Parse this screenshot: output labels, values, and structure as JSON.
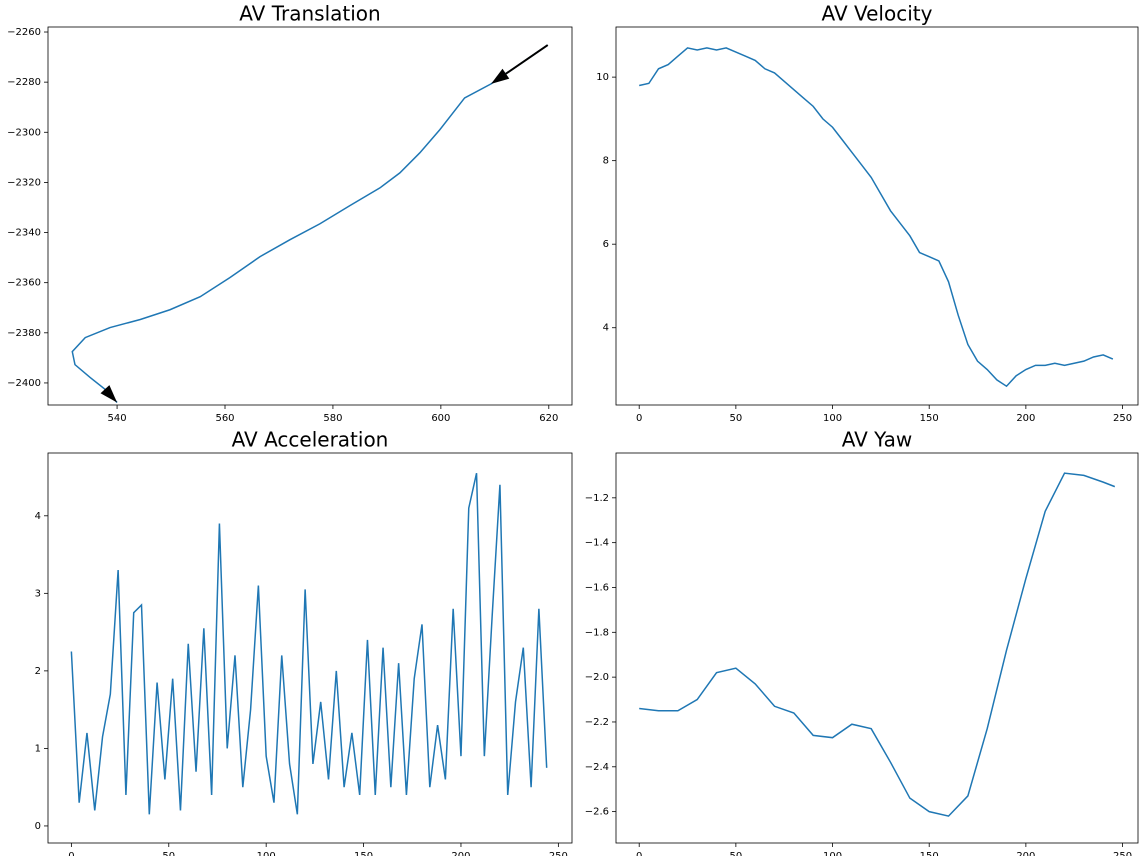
{
  "chart_data": [
    {
      "type": "line",
      "title": "AV Translation",
      "color": "#1f77b4",
      "arrows": true,
      "x": [
        619.8,
        609.3,
        604.4,
        599.8,
        596.1,
        592.4,
        588.7,
        583.1,
        577.6,
        572.0,
        566.5,
        560.9,
        555.4,
        549.8,
        544.3,
        538.7,
        534.1,
        531.7,
        532.2,
        535.0,
        537.8,
        540.0
      ],
      "values": [
        -2265.2,
        -2280.7,
        -2286.3,
        -2299.0,
        -2308.2,
        -2316.2,
        -2322.2,
        -2329.3,
        -2336.5,
        -2342.9,
        -2349.6,
        -2358.0,
        -2365.6,
        -2370.8,
        -2374.7,
        -2377.9,
        -2381.9,
        -2387.5,
        -2392.7,
        -2397.8,
        -2402.6,
        -2407.8
      ],
      "xlim": [
        527.2,
        624.3
      ],
      "xticks": [
        540,
        560,
        580,
        600,
        620
      ],
      "ylim": [
        -2408.8,
        -2258
      ],
      "yticks": [
        {
          "value": -2260,
          "label": "−2260"
        },
        {
          "value": -2280,
          "label": "−2280"
        },
        {
          "value": -2300,
          "label": "−2300"
        },
        {
          "value": -2320,
          "label": "−2320"
        },
        {
          "value": -2340,
          "label": "−2340"
        },
        {
          "value": -2360,
          "label": "−2360"
        },
        {
          "value": -2380,
          "label": "−2380"
        },
        {
          "value": -2400,
          "label": "−2400"
        }
      ]
    },
    {
      "type": "line",
      "title": "AV Velocity",
      "color": "#1f77b4",
      "x": [
        0,
        5,
        10,
        15,
        20,
        25,
        30,
        35,
        40,
        45,
        50,
        55,
        60,
        65,
        70,
        75,
        80,
        85,
        90,
        95,
        100,
        105,
        110,
        115,
        120,
        125,
        130,
        135,
        140,
        145,
        150,
        155,
        160,
        165,
        170,
        175,
        180,
        185,
        190,
        195,
        200,
        205,
        210,
        215,
        220,
        225,
        230,
        235,
        240,
        245
      ],
      "values": [
        9.8,
        9.85,
        10.2,
        10.3,
        10.5,
        10.7,
        10.65,
        10.7,
        10.65,
        10.7,
        10.6,
        10.5,
        10.4,
        10.2,
        10.1,
        9.9,
        9.7,
        9.5,
        9.3,
        9.0,
        8.8,
        8.5,
        8.2,
        7.9,
        7.6,
        7.2,
        6.8,
        6.5,
        6.2,
        5.8,
        5.7,
        5.6,
        5.1,
        4.3,
        3.6,
        3.2,
        3.0,
        2.75,
        2.6,
        2.85,
        3.0,
        3.1,
        3.1,
        3.15,
        3.1,
        3.15,
        3.2,
        3.3,
        3.35,
        3.25
      ],
      "xlim": [
        -12,
        258
      ],
      "xticks": [
        0,
        50,
        100,
        150,
        200,
        250
      ],
      "ylim": [
        2.15,
        11.2
      ],
      "yticks": [
        4,
        6,
        8,
        10
      ]
    },
    {
      "type": "line",
      "title": "AV Acceleration",
      "color": "#1f77b4",
      "x": [
        0,
        4,
        8,
        12,
        16,
        20,
        24,
        28,
        32,
        36,
        40,
        44,
        48,
        52,
        56,
        60,
        64,
        68,
        72,
        76,
        80,
        84,
        88,
        92,
        96,
        100,
        104,
        108,
        112,
        116,
        120,
        124,
        128,
        132,
        136,
        140,
        144,
        148,
        152,
        156,
        160,
        164,
        168,
        172,
        176,
        180,
        184,
        188,
        192,
        196,
        200,
        204,
        208,
        212,
        216,
        220,
        224,
        228,
        232,
        236,
        240,
        244
      ],
      "values": [
        2.25,
        0.3,
        1.2,
        0.2,
        1.15,
        1.7,
        3.3,
        0.4,
        2.75,
        2.85,
        0.15,
        1.85,
        0.6,
        1.9,
        0.2,
        2.35,
        0.7,
        2.55,
        0.4,
        3.9,
        1.0,
        2.2,
        0.5,
        1.5,
        3.1,
        0.9,
        0.3,
        2.2,
        0.8,
        0.15,
        3.05,
        0.8,
        1.6,
        0.6,
        2.0,
        0.5,
        1.2,
        0.4,
        2.4,
        0.4,
        2.3,
        0.5,
        2.1,
        0.4,
        1.9,
        2.6,
        0.5,
        1.3,
        0.6,
        2.8,
        0.9,
        4.1,
        4.55,
        0.9,
        2.7,
        4.4,
        0.4,
        1.6,
        2.3,
        0.5,
        2.8,
        0.75
      ],
      "xlim": [
        -12,
        257
      ],
      "xticks": [
        0,
        50,
        100,
        150,
        200,
        250
      ],
      "ylim": [
        -0.22,
        4.81
      ],
      "yticks": [
        0,
        1,
        2,
        3,
        4
      ]
    },
    {
      "type": "line",
      "title": "AV Yaw",
      "color": "#1f77b4",
      "x": [
        0,
        10,
        20,
        30,
        40,
        50,
        60,
        70,
        80,
        90,
        100,
        110,
        120,
        130,
        140,
        150,
        160,
        170,
        180,
        190,
        200,
        210,
        220,
        230,
        240,
        246
      ],
      "values": [
        -2.14,
        -2.15,
        -2.15,
        -2.1,
        -1.98,
        -1.96,
        -2.03,
        -2.13,
        -2.16,
        -2.26,
        -2.27,
        -2.21,
        -2.23,
        -2.38,
        -2.54,
        -2.6,
        -2.62,
        -2.53,
        -2.23,
        -1.88,
        -1.56,
        -1.26,
        -1.09,
        -1.1,
        -1.13,
        -1.15
      ],
      "xlim": [
        -12,
        258
      ],
      "xticks": [
        0,
        50,
        100,
        150,
        200,
        250
      ],
      "ylim": [
        -2.74,
        -1.0
      ],
      "yticks": [
        {
          "value": -2.6,
          "label": "−2.6"
        },
        {
          "value": -2.4,
          "label": "−2.4"
        },
        {
          "value": -2.2,
          "label": "−2.2"
        },
        {
          "value": -2.0,
          "label": "−2.0"
        },
        {
          "value": -1.8,
          "label": "−1.8"
        },
        {
          "value": -1.6,
          "label": "−1.6"
        },
        {
          "value": -1.4,
          "label": "−1.4"
        },
        {
          "value": -1.2,
          "label": "−1.2"
        }
      ]
    }
  ]
}
